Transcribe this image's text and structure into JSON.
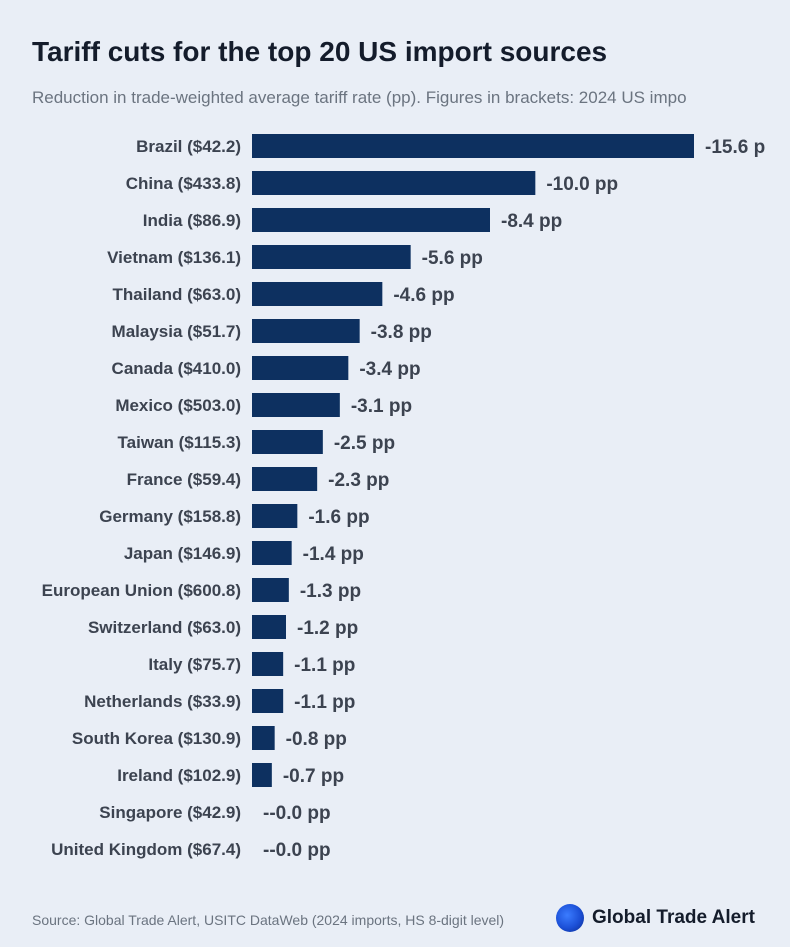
{
  "title": "Tariff cuts for the top 20 US import sources",
  "subtitle": "Reduction in trade-weighted average tariff rate (pp). Figures in brackets: 2024 US impo",
  "footer": {
    "source": "Source: Global Trade Alert, USITC DataWeb (2024 imports, HS 8-digit level)",
    "brand": "Global Trade Alert"
  },
  "colors": {
    "bar": "#0d3060",
    "background": "#e9eef6"
  },
  "chart_data": {
    "type": "bar",
    "orientation": "horizontal",
    "categories": [
      "Brazil ($42.2)",
      "China ($433.8)",
      "India ($86.9)",
      "Vietnam ($136.1)",
      "Thailand ($63.0)",
      "Malaysia ($51.7)",
      "Canada ($410.0)",
      "Mexico ($503.0)",
      "Taiwan ($115.3)",
      "France ($59.4)",
      "Germany ($158.8)",
      "Japan ($146.9)",
      "European Union ($600.8)",
      "Switzerland ($63.0)",
      "Italy ($75.7)",
      "Netherlands ($33.9)",
      "South Korea ($130.9)",
      "Ireland ($102.9)",
      "Singapore ($42.9)",
      "United Kingdom ($67.4)"
    ],
    "values": [
      -15.6,
      -10.0,
      -8.4,
      -5.6,
      -4.6,
      -3.8,
      -3.4,
      -3.1,
      -2.5,
      -2.3,
      -1.6,
      -1.4,
      -1.3,
      -1.2,
      -1.1,
      -1.1,
      -0.8,
      -0.7,
      -0.0,
      -0.0
    ],
    "value_labels": [
      "-15.6 p",
      "-10.0 pp",
      "-8.4 pp",
      "-5.6 pp",
      "-4.6 pp",
      "-3.8 pp",
      "-3.4 pp",
      "-3.1 pp",
      "-2.5 pp",
      "-2.3 pp",
      "-1.6 pp",
      "-1.4 pp",
      "-1.3 pp",
      "-1.2 pp",
      "-1.1 pp",
      "-1.1 pp",
      "-0.8 pp",
      "-0.7 pp",
      "--0.0 pp",
      "--0.0 pp"
    ],
    "grid": false,
    "legend": "none"
  }
}
